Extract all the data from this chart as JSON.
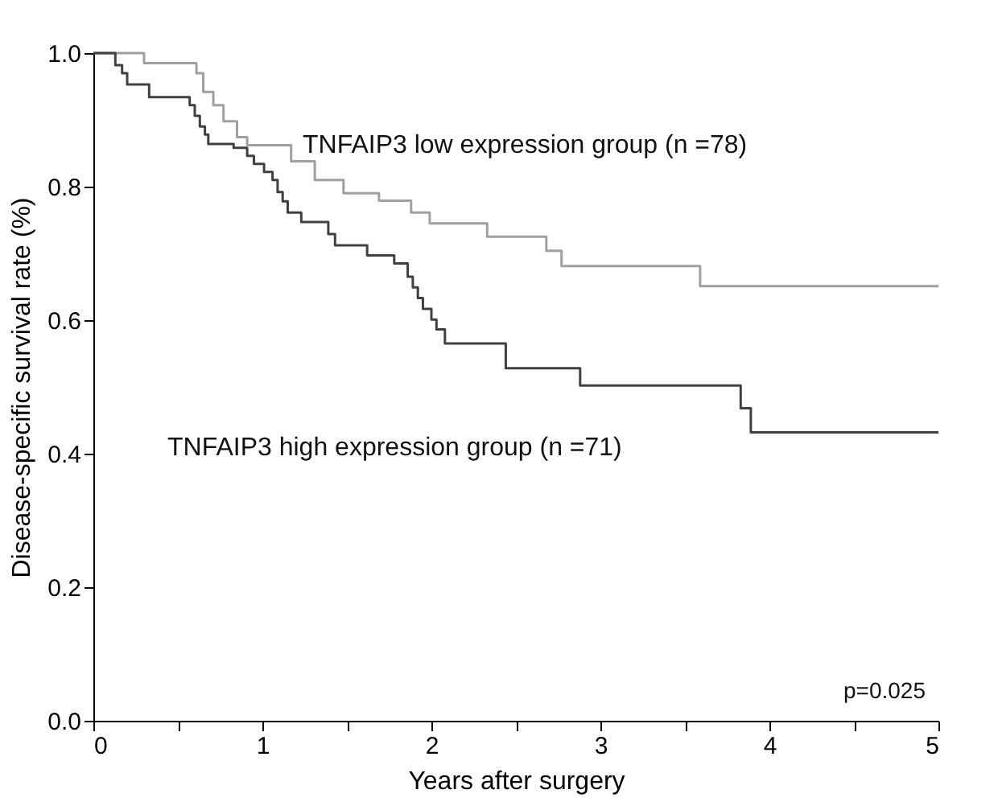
{
  "chart_data": {
    "type": "step",
    "xlabel": "Years after surgery",
    "ylabel": "Disease-specific survival rate (%)",
    "xlim": [
      0,
      5
    ],
    "ylim": [
      0,
      1
    ],
    "xticks": [
      0,
      {
        "value": 0.5,
        "label": null
      },
      1,
      {
        "value": 1.5,
        "label": null
      },
      2,
      {
        "value": 2.5,
        "label": null
      },
      3,
      {
        "value": 3.5,
        "label": null
      },
      4,
      {
        "value": 4.5,
        "label": null
      },
      5
    ],
    "yticks": [
      {
        "value": 0,
        "label": "0.0"
      },
      0.2,
      0.4,
      0.6,
      0.8,
      {
        "value": 1,
        "label": "1.0"
      }
    ],
    "grid": false,
    "legend": false,
    "line_style": "solid",
    "marker": "none",
    "series": [
      {
        "name": "TNFAIP3 low expression group (n =78)",
        "color": "#a0a0a0",
        "x": [
          0,
          0.3,
          0.61,
          0.65,
          0.71,
          0.77,
          0.85,
          0.91,
          1.17,
          1.31,
          1.48,
          1.69,
          1.88,
          1.99,
          2.33,
          2.68,
          2.77,
          3.59,
          5
        ],
        "values": [
          1.0,
          0.985,
          0.97,
          0.942,
          0.922,
          0.898,
          0.874,
          0.862,
          0.838,
          0.81,
          0.79,
          0.779,
          0.761,
          0.745,
          0.725,
          0.704,
          0.681,
          0.651,
          0.651
        ]
      },
      {
        "name": "TNFAIP3 high expression group (n =71)",
        "color": "#404040",
        "x": [
          0,
          0.13,
          0.17,
          0.2,
          0.33,
          0.57,
          0.6,
          0.63,
          0.66,
          0.68,
          0.83,
          0.91,
          0.95,
          1.01,
          1.06,
          1.09,
          1.12,
          1.15,
          1.23,
          1.39,
          1.43,
          1.62,
          1.78,
          1.86,
          1.89,
          1.92,
          1.95,
          2.0,
          2.03,
          2.08,
          2.44,
          2.88,
          3.83,
          3.89,
          5
        ],
        "values": [
          1.0,
          0.982,
          0.97,
          0.953,
          0.934,
          0.922,
          0.906,
          0.89,
          0.878,
          0.864,
          0.858,
          0.846,
          0.834,
          0.822,
          0.81,
          0.792,
          0.778,
          0.761,
          0.747,
          0.729,
          0.712,
          0.697,
          0.685,
          0.665,
          0.649,
          0.633,
          0.617,
          0.601,
          0.586,
          0.565,
          0.528,
          0.502,
          0.468,
          0.432,
          0.432
        ]
      }
    ],
    "annotations": [
      "p=0.025"
    ]
  }
}
